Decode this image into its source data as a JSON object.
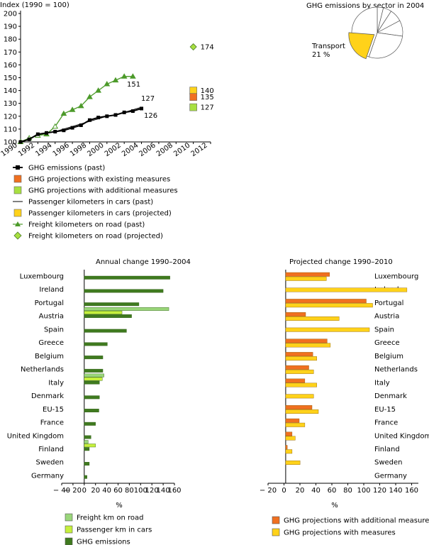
{
  "line_chart": {
    "y_axis_label": "Index (1990 = 100)",
    "y_ticks": [
      100,
      110,
      120,
      130,
      140,
      150,
      160,
      170,
      180,
      190,
      200
    ],
    "x_ticks": [
      1990,
      1992,
      1994,
      1996,
      1998,
      2000,
      2002,
      2004,
      2006,
      2008,
      2010,
      2012
    ],
    "colors": {
      "ghg": "#000000",
      "freight": "#4c9a2a",
      "existing": "#f07020",
      "additional": "#a8e040",
      "passenger_proj": "#ffd21a",
      "freight_proj": "#a8e040"
    }
  },
  "pie": {
    "title": "GHG emissions by sector in 2004",
    "label": "Transport",
    "value_label": "21 %",
    "transport_share": 21,
    "colors": {
      "transport": "#ffd21a"
    }
  },
  "legend_top": [
    {
      "label": "GHG emissions (past)",
      "marker": "black-square-line"
    },
    {
      "label": "GHG projections with existing measures",
      "marker": "orange-square"
    },
    {
      "label": "GHG projections with additional measures",
      "marker": "green-square"
    },
    {
      "label": "Passenger kilometers in cars (past)",
      "marker": "line"
    },
    {
      "label": "Passenger kilometers in cars (projected)",
      "marker": "yellow-square"
    },
    {
      "label": "Freight kilometers on road (past)",
      "marker": "green-triangle-line"
    },
    {
      "label": "Freight kilometers on road (projected)",
      "marker": "green-diamond"
    }
  ],
  "annual": {
    "title": "Annual change 1990–2004",
    "xlabel": "%",
    "ticks": [
      "− 40",
      "− 20",
      "0",
      "20",
      "40",
      "60",
      "80",
      "100",
      "120",
      "140",
      "160"
    ],
    "legend": [
      "Freight km on road",
      "Passenger km in cars",
      "GHG emissions"
    ],
    "colors": {
      "freight": "#9ad67a",
      "passenger": "#c6f03c",
      "ghg": "#3f7a1f"
    }
  },
  "projected": {
    "title": "Projected change 1990–2010",
    "xlabel": "%",
    "ticks": [
      "− 20",
      "0",
      "20",
      "40",
      "60",
      "80",
      "100",
      "120",
      "140",
      "160"
    ],
    "legend": [
      "GHG projections with additional measures",
      "GHG projections with measures"
    ],
    "colors": {
      "additional": "#f07020",
      "measures": "#ffd21a"
    }
  },
  "countries": [
    "Luxembourg",
    "Ireland",
    "Portugal",
    "Austria",
    "Spain",
    "Greece",
    "Belgium",
    "Netherlands",
    "Italy",
    "Denmark",
    "EU-15",
    "France",
    "United Kingdom",
    "Finland",
    "Sweden",
    "Germany"
  ],
  "chart_data": [
    {
      "type": "line",
      "x_range": [
        1990,
        2012
      ],
      "ylim": [
        100,
        200
      ],
      "series": [
        {
          "name": "GHG emissions (past)",
          "x": [
            1990,
            1991,
            1992,
            1993,
            1994,
            1995,
            1996,
            1997,
            1998,
            1999,
            2000,
            2001,
            2002,
            2003,
            2004
          ],
          "values": [
            100,
            102,
            106,
            107,
            108,
            109,
            111,
            113,
            117,
            119,
            120,
            121,
            123,
            124,
            126
          ],
          "end_label": "126"
        },
        {
          "name": "Freight kilometers on road (past)",
          "x": [
            1990,
            1991,
            1992,
            1993,
            1994,
            1995,
            1996,
            1997,
            1998,
            1999,
            2000,
            2001,
            2002,
            2003
          ],
          "values": [
            100,
            103,
            105,
            106,
            112,
            122,
            125,
            128,
            135,
            140,
            145,
            148,
            151,
            151
          ],
          "end_label": "151"
        },
        {
          "name": "Passenger kilometers in cars (past)",
          "x": [
            1990,
            1991,
            1992,
            1993,
            1994,
            1995,
            1996,
            1997,
            1998,
            1999,
            2000,
            2001,
            2002,
            2003,
            2004
          ],
          "values": [
            100,
            103,
            105,
            107,
            108,
            110,
            112,
            114,
            116,
            118,
            120,
            121,
            123,
            125,
            127
          ],
          "end_label": "127"
        },
        {
          "name": "Freight kilometers on road (projected)",
          "x": [
            2010
          ],
          "values": [
            174
          ],
          "end_label": "174"
        },
        {
          "name": "Passenger kilometers in cars (projected)",
          "x": [
            2010
          ],
          "values": [
            140
          ],
          "end_label": "140"
        },
        {
          "name": "GHG projections with existing measures",
          "x": [
            2010
          ],
          "values": [
            135
          ],
          "end_label": "135"
        },
        {
          "name": "GHG projections with additional measures",
          "x": [
            2010
          ],
          "values": [
            127
          ],
          "end_label": "127"
        }
      ]
    },
    {
      "type": "pie",
      "title": "GHG emissions by sector in 2004",
      "slices": [
        {
          "name": "Transport",
          "value": 21
        }
      ]
    },
    {
      "type": "bar",
      "title": "Annual change 1990–2004",
      "xlabel": "%",
      "xlim": [
        -40,
        160
      ],
      "categories": [
        "Luxembourg",
        "Ireland",
        "Portugal",
        "Austria",
        "Spain",
        "Greece",
        "Belgium",
        "Netherlands",
        "Italy",
        "Denmark",
        "EU-15",
        "France",
        "United Kingdom",
        "Finland",
        "Sweden",
        "Germany"
      ],
      "series": [
        {
          "name": "Freight km on road",
          "values": [
            null,
            null,
            null,
            150,
            null,
            null,
            null,
            null,
            35,
            null,
            null,
            null,
            null,
            7,
            null,
            null
          ]
        },
        {
          "name": "Passenger km in cars",
          "values": [
            null,
            null,
            null,
            67,
            null,
            null,
            null,
            null,
            32,
            null,
            null,
            null,
            null,
            20,
            null,
            null
          ]
        },
        {
          "name": "GHG emissions",
          "values": [
            152,
            140,
            97,
            84,
            75,
            41,
            33,
            33,
            27,
            27,
            26,
            20,
            12,
            9,
            9,
            5
          ]
        }
      ]
    },
    {
      "type": "bar",
      "title": "Projected change 1990–2010",
      "xlabel": "%",
      "xlim": [
        -20,
        160
      ],
      "categories": [
        "Luxembourg",
        "Ireland",
        "Portugal",
        "Austria",
        "Spain",
        "Greece",
        "Belgium",
        "Netherlands",
        "Italy",
        "Denmark",
        "EU-15",
        "France",
        "United Kingdom",
        "Finland",
        "Sweden",
        "Germany"
      ],
      "series": [
        {
          "name": "GHG projections with additional measures",
          "values": [
            55,
            null,
            101,
            25,
            null,
            52,
            34,
            29,
            24,
            null,
            33,
            17,
            8,
            2,
            null,
            null
          ]
        },
        {
          "name": "GHG projections with measures",
          "values": [
            51,
            152,
            109,
            67,
            105,
            56,
            39,
            35,
            39,
            35,
            41,
            24,
            12,
            8,
            18,
            null
          ]
        }
      ]
    }
  ]
}
